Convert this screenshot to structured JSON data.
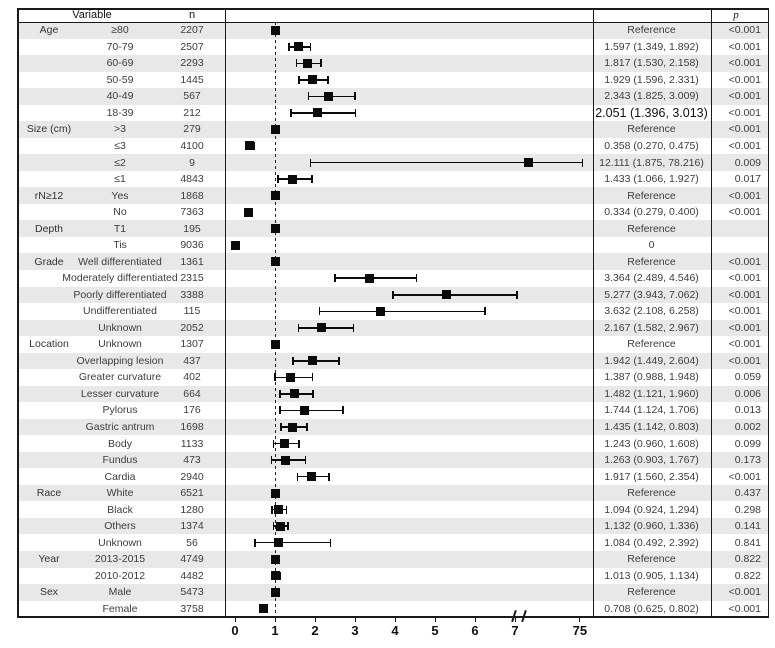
{
  "table": {
    "headers": {
      "variable": "Variable",
      "n": "n",
      "p": "p"
    }
  },
  "chart_data": {
    "type": "scatter",
    "subtype": "forest-plot",
    "xlabel": "",
    "x_ticks": [
      0,
      1,
      2,
      3,
      4,
      5,
      6,
      7,
      75
    ],
    "x_axis_break_between": [
      7,
      75
    ],
    "reference_line": 1,
    "marker_color": "#0b0b0b",
    "row_shading_color": "#e8e8e8",
    "rows": [
      {
        "group": "Age",
        "level": "≥80",
        "n": "2207",
        "hr": "Reference",
        "p": "<0.001",
        "est": 1
      },
      {
        "level": "70-79",
        "n": "2507",
        "hr": "1.597 (1.349, 1.892)",
        "p": "<0.001",
        "est": 1.597,
        "lo": 1.349,
        "hi": 1.892
      },
      {
        "level": "60-69",
        "n": "2293",
        "hr": "1.817 (1.530, 2.158)",
        "p": "<0.001",
        "est": 1.817,
        "lo": 1.53,
        "hi": 2.158
      },
      {
        "level": "50-59",
        "n": "1445",
        "hr": "1.929 (1.596, 2.331)",
        "p": "<0.001",
        "est": 1.929,
        "lo": 1.596,
        "hi": 2.331
      },
      {
        "level": "40-49",
        "n": "567",
        "hr": "2.343 (1.825, 3.009)",
        "p": "<0.001",
        "est": 2.343,
        "lo": 1.825,
        "hi": 3.009
      },
      {
        "level": "18-39",
        "n": "212",
        "hr": "2.051 (1.396, 3.013)",
        "p": "<0.001",
        "est": 2.051,
        "lo": 1.396,
        "hi": 3.013,
        "large": true
      },
      {
        "group": "Size (cm)",
        "level": ">3",
        "n": "279",
        "hr": "Reference",
        "p": "<0.001",
        "est": 1
      },
      {
        "level": "≤3",
        "n": "4100",
        "hr": "0.358 (0.270, 0.475)",
        "p": "<0.001",
        "est": 0.358,
        "lo": 0.27,
        "hi": 0.475
      },
      {
        "level": "≤2",
        "n": "9",
        "hr": "12.111 (1.875, 78.216)",
        "p": "0.009",
        "est": 12.111,
        "lo": 1.875,
        "hi": 78.216
      },
      {
        "level": "≤1",
        "n": "4843",
        "hr": "1.433 (1.066, 1.927)",
        "p": "0.017",
        "est": 1.433,
        "lo": 1.066,
        "hi": 1.927
      },
      {
        "group": "rN≥12",
        "level": "Yes",
        "n": "1868",
        "hr": "Reference",
        "p": "<0.001",
        "est": 1
      },
      {
        "level": "No",
        "n": "7363",
        "hr": "0.334 (0.279, 0.400)",
        "p": "<0.001",
        "est": 0.334,
        "lo": 0.279,
        "hi": 0.4
      },
      {
        "group": "Depth",
        "level": "T1",
        "n": "195",
        "hr": "Reference",
        "p": "",
        "est": 1
      },
      {
        "level": "Tis",
        "n": "9036",
        "hr": "0",
        "p": "",
        "est": 0
      },
      {
        "group": "Grade",
        "level": "Well differentiated",
        "n": "1361",
        "hr": "Reference",
        "p": "<0.001",
        "est": 1
      },
      {
        "level": "Moderately differentiated",
        "n": "2315",
        "hr": "3.364 (2.489, 4.546)",
        "p": "<0.001",
        "est": 3.364,
        "lo": 2.489,
        "hi": 4.546
      },
      {
        "level": "Poorly differentiated",
        "n": "3388",
        "hr": "5.277 (3.943, 7.062)",
        "p": "<0.001",
        "est": 5.277,
        "lo": 3.943,
        "hi": 7.062
      },
      {
        "level": "Undifferentiated",
        "n": "115",
        "hr": "3.632 (2.108, 6.258)",
        "p": "<0.001",
        "est": 3.632,
        "lo": 2.108,
        "hi": 6.258
      },
      {
        "level": "Unknown",
        "n": "2052",
        "hr": "2.167 (1.582, 2.967)",
        "p": "<0.001",
        "est": 2.167,
        "lo": 1.582,
        "hi": 2.967
      },
      {
        "group": "Location",
        "level": "Unknown",
        "n": "1307",
        "hr": "Reference",
        "p": "<0.001",
        "est": 1
      },
      {
        "level": "Overlapping lesion",
        "n": "437",
        "hr": "1.942 (1.449, 2.604)",
        "p": "<0.001",
        "est": 1.942,
        "lo": 1.449,
        "hi": 2.604
      },
      {
        "level": "Greater curvature",
        "n": "402",
        "hr": "1.387 (0.988, 1.948)",
        "p": "0.059",
        "est": 1.387,
        "lo": 0.988,
        "hi": 1.948
      },
      {
        "level": "Lesser curvature",
        "n": "664",
        "hr": "1.482 (1.121, 1.960)",
        "p": "0.006",
        "est": 1.482,
        "lo": 1.121,
        "hi": 1.96
      },
      {
        "level": "Pylorus",
        "n": "176",
        "hr": "1.744 (1.124, 1.706)",
        "p": "0.013",
        "est": 1.744,
        "lo": 1.124,
        "hi": 1.706,
        "plot_hi": 2.706
      },
      {
        "level": "Gastric antrum",
        "n": "1698",
        "hr": "1.435 (1.142, 0.803)",
        "p": "0.002",
        "est": 1.435,
        "lo": 1.142,
        "hi": 0.803,
        "plot_hi": 1.803
      },
      {
        "level": "Body",
        "n": "1133",
        "hr": "1.243 (0.960, 1.608)",
        "p": "0.099",
        "est": 1.243,
        "lo": 0.96,
        "hi": 1.608
      },
      {
        "level": "Fundus",
        "n": "473",
        "hr": "1.263 (0.903, 1.767)",
        "p": "0.173",
        "est": 1.263,
        "lo": 0.903,
        "hi": 1.767
      },
      {
        "level": "Cardia",
        "n": "2940",
        "hr": "1.917 (1.560, 2.354)",
        "p": "<0.001",
        "est": 1.917,
        "lo": 1.56,
        "hi": 2.354
      },
      {
        "group": "Race",
        "level": "White",
        "n": "6521",
        "hr": "Reference",
        "p": "0.437",
        "est": 1
      },
      {
        "level": "Black",
        "n": "1280",
        "hr": "1.094 (0.924, 1.294)",
        "p": "0.298",
        "est": 1.094,
        "lo": 0.924,
        "hi": 1.294
      },
      {
        "level": "Others",
        "n": "1374",
        "hr": "1.132 (0.960, 1.336)",
        "p": "0.141",
        "est": 1.132,
        "lo": 0.96,
        "hi": 1.336
      },
      {
        "level": "Unknown",
        "n": "56",
        "hr": "1.084 (0.492, 2.392)",
        "p": "0.841",
        "est": 1.084,
        "lo": 0.492,
        "hi": 2.392
      },
      {
        "group": "Year",
        "level": "2013-2015",
        "n": "4749",
        "hr": "Reference",
        "p": "0.822",
        "est": 1
      },
      {
        "level": "2010-2012",
        "n": "4482",
        "hr": "1.013 (0.905, 1.134)",
        "p": "0.822",
        "est": 1.013,
        "lo": 0.905,
        "hi": 1.134
      },
      {
        "group": "Sex",
        "level": "Male",
        "n": "5473",
        "hr": "Reference",
        "p": "<0.001",
        "est": 1
      },
      {
        "level": "Female",
        "n": "3758",
        "hr": "0.708 (0.625, 0.802)",
        "p": "<0.001",
        "est": 0.708,
        "lo": 0.625,
        "hi": 0.802
      }
    ]
  }
}
